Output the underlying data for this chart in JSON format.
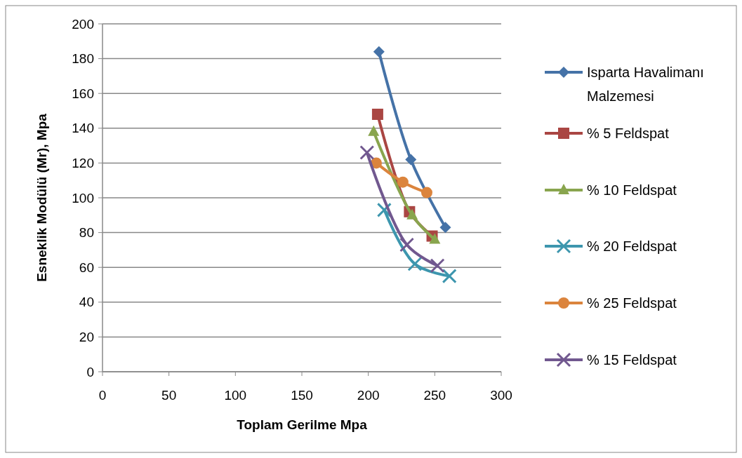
{
  "chart_data": {
    "type": "line",
    "xlabel": "Toplam Gerilme Mpa",
    "ylabel": "Esneklik Modülü (Mr), Mpa",
    "xlim": [
      0,
      300
    ],
    "xticks": [
      0,
      50,
      100,
      150,
      200,
      250,
      300
    ],
    "ylim": [
      0,
      200
    ],
    "yticks": [
      0,
      20,
      40,
      60,
      80,
      100,
      120,
      140,
      160,
      180,
      200
    ],
    "grid": "y",
    "legend": "right",
    "series": [
      {
        "name": "Isparta Havalimanı Malzemesi",
        "color": "#4572a7",
        "marker": "diamond",
        "x": [
          208,
          232,
          258
        ],
        "values": [
          184,
          122,
          83
        ]
      },
      {
        "name": "% 5 Feldspat",
        "color": "#aa4643",
        "marker": "square",
        "x": [
          207,
          231,
          248
        ],
        "values": [
          148,
          92,
          78
        ]
      },
      {
        "name": "% 10 Feldspat",
        "color": "#89a54e",
        "marker": "triangle",
        "x": [
          204,
          233,
          250
        ],
        "values": [
          138,
          90,
          76
        ]
      },
      {
        "name": "% 20 Feldspat",
        "color": "#3d96ae",
        "marker": "cross",
        "x": [
          212,
          235,
          261
        ],
        "values": [
          93,
          62,
          55
        ]
      },
      {
        "name": "% 25 Feldspat",
        "color": "#db843d",
        "marker": "circle",
        "x": [
          206,
          226,
          244
        ],
        "values": [
          120,
          109,
          103
        ]
      },
      {
        "name": "% 15 Feldspat",
        "color": "#71588f",
        "marker": "cross",
        "x": [
          199,
          229,
          252
        ],
        "values": [
          126,
          73,
          61
        ]
      }
    ]
  }
}
